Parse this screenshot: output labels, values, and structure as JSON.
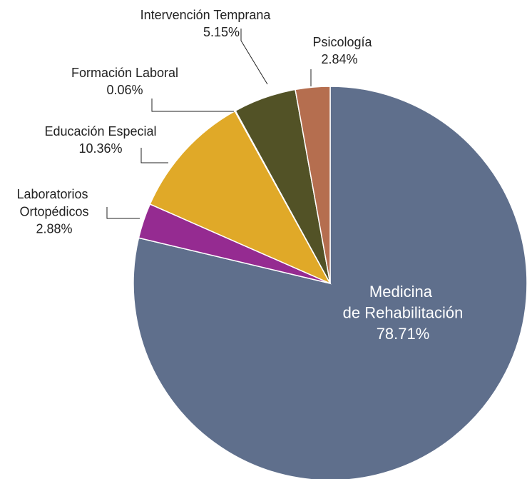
{
  "chart_data": {
    "type": "pie",
    "categories": [
      "Medicina de Rehabilitación",
      "Laboratorios Ortopédicos",
      "Educación Especial",
      "Formación Laboral",
      "Intervención Temprana",
      "Psicología"
    ],
    "values": [
      78.71,
      2.88,
      10.36,
      0.06,
      5.15,
      2.84
    ],
    "value_labels": [
      "78.71%",
      "2.88%",
      "10.36%",
      "0.06%",
      "5.15%",
      "2.84%"
    ],
    "colors": [
      "#5f6f8c",
      "#952b91",
      "#e0a928",
      "#7a6a30",
      "#525226",
      "#b56e4f"
    ]
  }
}
